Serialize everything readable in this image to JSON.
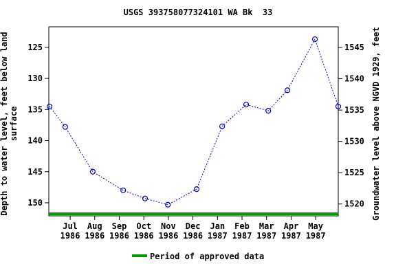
{
  "chart_data": {
    "type": "line",
    "title": "USGS 393758077324101 WA Bk  33",
    "y_label": "Depth to water level, feet below land surface",
    "y2_label": "Groundwater level above NGVD 1929, feet",
    "x": [
      -0.84,
      -0.2,
      0.92,
      2.16,
      3.05,
      3.98,
      5.15,
      6.19,
      7.17,
      8.07,
      8.85,
      9.97,
      10.92
    ],
    "series": [
      {
        "name": "Depth to water level",
        "color": "#0000cc",
        "values": [
          134.5,
          137.8,
          145.0,
          148.0,
          149.3,
          150.3,
          147.8,
          137.7,
          134.2,
          135.2,
          131.9,
          123.7,
          134.5
        ]
      }
    ],
    "xlim": [
      -0.87,
      10.92
    ],
    "xticks": [
      {
        "value": 0,
        "label": "Jul",
        "year": "1986"
      },
      {
        "value": 1,
        "label": "Aug",
        "year": "1986"
      },
      {
        "value": 2,
        "label": "Sep",
        "year": "1986"
      },
      {
        "value": 3,
        "label": "Oct",
        "year": "1986"
      },
      {
        "value": 4,
        "label": "Nov",
        "year": "1986"
      },
      {
        "value": 5,
        "label": "Dec",
        "year": "1986"
      },
      {
        "value": 6,
        "label": "Jan",
        "year": "1987"
      },
      {
        "value": 7,
        "label": "Feb",
        "year": "1987"
      },
      {
        "value": 8,
        "label": "Mar",
        "year": "1987"
      },
      {
        "value": 9,
        "label": "Apr",
        "year": "1987"
      },
      {
        "value": 10,
        "label": "May",
        "year": "1987"
      }
    ],
    "ylim": [
      121.7,
      152.1
    ],
    "y_inverted": true,
    "yticks": [
      125,
      130,
      135,
      140,
      145,
      150
    ],
    "y2lim": [
      1548.3,
      1518.1
    ],
    "y2ticks": [
      1520,
      1525,
      1530,
      1535,
      1540,
      1545
    ],
    "approved_period": {
      "name": "Period of approved data",
      "color": "#009900",
      "x": [
        -0.87,
        10.92
      ]
    }
  }
}
